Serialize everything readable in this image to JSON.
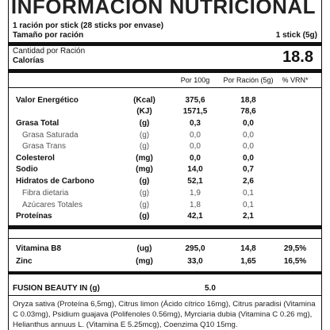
{
  "header": {
    "title": "INFORMACIÓN NUTRICIONAL",
    "servings": "1 ración por stick (28 sticks por envase)",
    "serving_size_label": "Tamaño por ración",
    "serving_size": "1 stick (5g)"
  },
  "calories": {
    "amount_label": "Cantidad por Ración",
    "label": "Calorías",
    "value": "18.8"
  },
  "table": {
    "columns": [
      "Por 100g",
      "Por Ración (5g)",
      "% VRN*"
    ],
    "rows": [
      [
        "Valor Energético",
        "(Kcal)",
        "375,6",
        "18,8"
      ],
      [
        null,
        "(KJ)",
        "1571,5",
        "78,6"
      ],
      [
        "Grasa Total",
        "(g)",
        "0,3",
        "0,0"
      ],
      [
        "Grasa Saturada",
        "(g)",
        "0,0",
        "0,0"
      ],
      [
        "Grasa Trans",
        "(g)",
        "0,0",
        "0,0"
      ],
      [
        "Colesterol",
        "(mg)",
        "0,0",
        "0,0"
      ],
      [
        "Sodio",
        "(mg)",
        "14,0",
        "0,7"
      ],
      [
        "Hidratos de Carbono",
        "(g)",
        "52,1",
        "2,6"
      ],
      [
        "Fibra dietaria",
        "(g)",
        "1,9",
        "0,1"
      ],
      [
        "Azúcares Totales",
        "(g)",
        "1,8",
        "0,1"
      ],
      [
        "Proteínas",
        "(g)",
        "42,1",
        "2,1"
      ]
    ],
    "vitamin_rows": [
      [
        "Vitamina B8",
        "(ug)",
        "295,0",
        "14,8",
        "29,5%"
      ],
      [
        "Zinc",
        "(mg)",
        "33,0",
        "1,65",
        "16,5%"
      ]
    ]
  },
  "blend": {
    "label": "FUSION BEAUTY IN (g)",
    "value": "5.0"
  },
  "ingredients": "Oryza sativa (Proteína 6,5mg), Citrus limon (Ácido cítrico 16mg), Citrus paradisi (Vitamina C 0.03mg), Psidium guajava (Polifenoles 0.56mg), Myrciaria dubia (Vitamina C 0.26 mg), Helianthus annuus L. (Vitamina E 5.25mcg), Coenzima Q10 15mg."
}
